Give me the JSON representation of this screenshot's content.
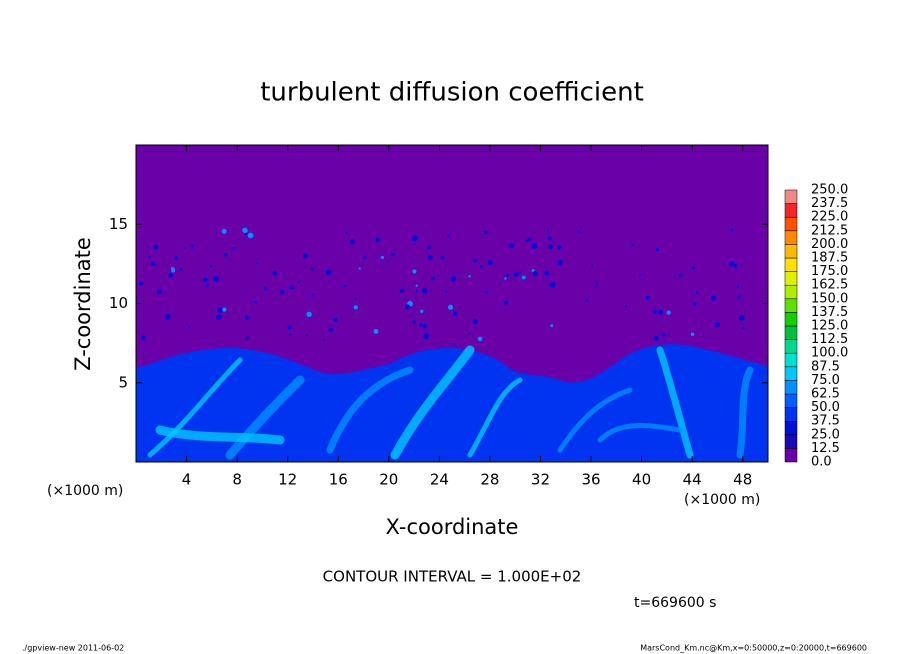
{
  "chart_data": {
    "type": "contour",
    "title": "turbulent diffusion coefficient",
    "xlabel": "X-coordinate",
    "ylabel": "Z-coordinate",
    "x_unit": "(×1000 m)",
    "y_unit": "(×1000 m)",
    "xlim": [
      0,
      50
    ],
    "xticks": [
      4,
      8,
      12,
      16,
      20,
      24,
      28,
      32,
      36,
      40,
      44,
      48
    ],
    "ylim": [
      0,
      20
    ],
    "yticks": [
      5,
      10,
      15
    ],
    "levels": [
      {
        "value": 0,
        "label": "0.0"
      },
      12.5,
      {
        "value": 25,
        "label": "25.0"
      },
      37.5,
      {
        "value": 50,
        "label": "50.0"
      },
      62.5,
      {
        "value": 75,
        "label": "75.0"
      },
      87.5,
      {
        "value": 100,
        "label": "100.0"
      },
      112.5,
      {
        "value": 125,
        "label": "125.0"
      },
      137.5,
      {
        "value": 150,
        "label": "150.0"
      },
      162.5,
      {
        "value": 175,
        "label": "175.0"
      },
      187.5,
      {
        "value": 200,
        "label": "200.0"
      },
      212.5,
      {
        "value": 225,
        "label": "225.0"
      },
      237.5,
      {
        "value": 250,
        "label": "250.0"
      }
    ],
    "colors": [
      "#6a00a8",
      "#1a0ab8",
      "#0010d8",
      "#0034f0",
      "#0060ff",
      "#0090ff",
      "#00c8ff",
      "#00e0d0",
      "#00d890",
      "#00c040",
      "#10d000",
      "#60e000",
      "#a8f000",
      "#e0f000",
      "#ffe000",
      "#ffb800",
      "#ff8800",
      "#ff5000",
      "#f02828",
      "#f08888"
    ],
    "annotation": "CONTOUR INTERVAL = 1.000E+02",
    "time_label": "t=669600 s",
    "footer_left": "./gpview-new   2011-06-02",
    "footer_right": "MarsCond_Km.nc@Km,x=0:50000,z=0:20000,t=669600"
  }
}
